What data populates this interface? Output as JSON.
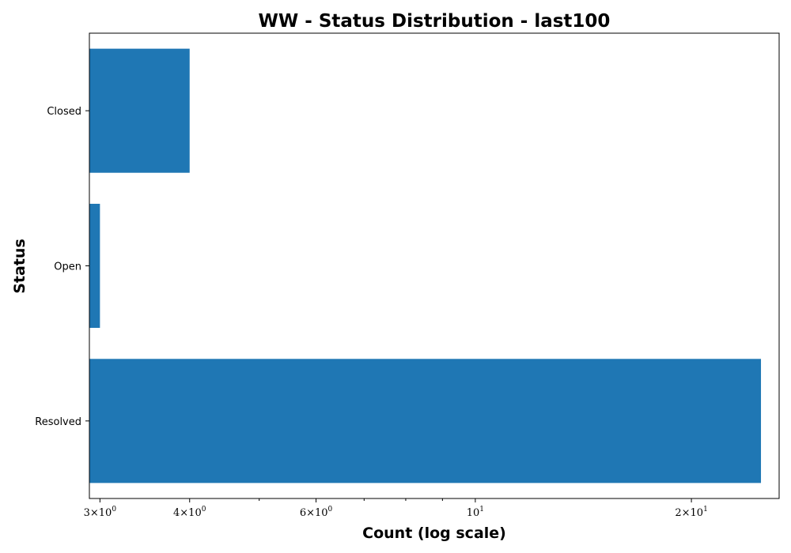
{
  "chart_data": {
    "type": "bar",
    "orientation": "horizontal",
    "title": "WW - Status Distribution - last100",
    "xlabel": "Count (log scale)",
    "ylabel": "Status",
    "x_scale": "log",
    "xlim": [
      2.9,
      26.5
    ],
    "categories": [
      "Closed",
      "Open",
      "Resolved"
    ],
    "values": [
      4,
      3,
      25
    ],
    "bar_color": "#1f77b4",
    "grid": false,
    "legend": "none",
    "major_ticks": [
      {
        "value": 3,
        "mantissa": "3",
        "exponent": "0"
      },
      {
        "value": 4,
        "mantissa": "4",
        "exponent": "0"
      },
      {
        "value": 6,
        "mantissa": "6",
        "exponent": "0"
      },
      {
        "value": 10,
        "mantissa": "",
        "exponent": "1"
      },
      {
        "value": 20,
        "mantissa": "2",
        "exponent": "1"
      }
    ],
    "minor_ticks": [
      5,
      7,
      8,
      9
    ]
  }
}
